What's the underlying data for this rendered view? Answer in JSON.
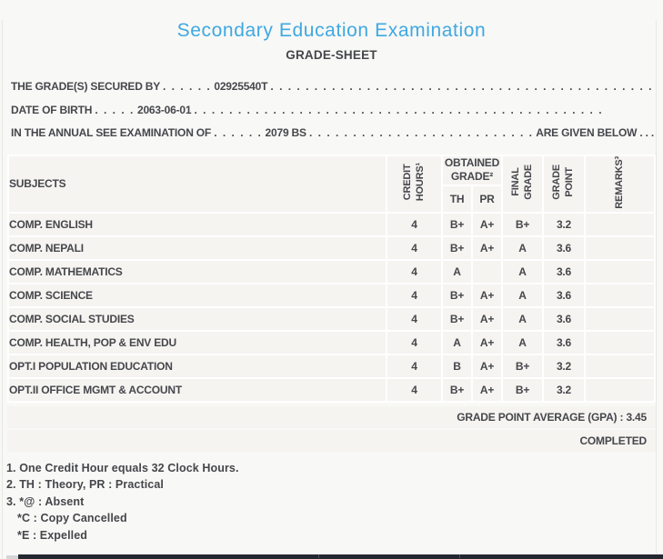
{
  "document": {
    "title": "Secondary Education Examination",
    "subtitle": "GRADE-SHEET"
  },
  "info": {
    "lines": [
      {
        "label": "THE GRADE(S) SECURED BY",
        "dots1": ". . . . . .",
        "value": "02925540T",
        "dots2": ". . . . . . . . . . . . . . . . . . . . . . . . . . . . . . . . . . . . . . . . . . . . . .",
        "suffix": ""
      },
      {
        "label": "DATE OF BIRTH",
        "dots1": ". . . . .",
        "value": "2063-06-01",
        "dots2": ". . . . . . . . . . . . . . . . . . . . . . . . . . . . . . . . . . . . . . . . . . . . . . .",
        "suffix": ""
      },
      {
        "label": "IN THE ANNUAL SEE EXAMINATION OF",
        "dots1": ". . . . . .",
        "value": "2079 BS",
        "dots2": ". . . . . . . . . . . . . . . . . . . . . . . . . .",
        "suffix": "ARE GIVEN BELOW . . ."
      }
    ]
  },
  "table": {
    "headers": {
      "subjects": "SUBJECTS",
      "credit_hours": {
        "l1": "CREDIT",
        "l2": "HOURS¹"
      },
      "obtained_grade": {
        "l1": "OBTAINED",
        "l2": "GRADE²"
      },
      "th": "TH",
      "pr": "PR",
      "final_grade": {
        "l1": "FINAL",
        "l2": "GRADE"
      },
      "grade_point": {
        "l1": "GRADE",
        "l2": "POINT"
      },
      "remarks": {
        "l1": "REMARKS³",
        "l2": ""
      }
    },
    "rows": [
      {
        "subject": "COMP. ENGLISH",
        "credit": "4",
        "th": "B+",
        "pr": "A+",
        "final": "B+",
        "gp": "3.2",
        "remarks": ""
      },
      {
        "subject": "COMP. NEPALI",
        "credit": "4",
        "th": "B+",
        "pr": "A+",
        "final": "A",
        "gp": "3.6",
        "remarks": ""
      },
      {
        "subject": "COMP. MATHEMATICS",
        "credit": "4",
        "th": "A",
        "pr": "",
        "final": "A",
        "gp": "3.6",
        "remarks": ""
      },
      {
        "subject": "COMP. SCIENCE",
        "credit": "4",
        "th": "B+",
        "pr": "A+",
        "final": "A",
        "gp": "3.6",
        "remarks": ""
      },
      {
        "subject": "COMP. SOCIAL STUDIES",
        "credit": "4",
        "th": "B+",
        "pr": "A+",
        "final": "A",
        "gp": "3.6",
        "remarks": ""
      },
      {
        "subject": "COMP. HEALTH, POP & ENV EDU",
        "credit": "4",
        "th": "A",
        "pr": "A+",
        "final": "A",
        "gp": "3.6",
        "remarks": ""
      },
      {
        "subject": "OPT.I POPULATION EDUCATION",
        "credit": "4",
        "th": "B",
        "pr": "A+",
        "final": "B+",
        "gp": "3.2",
        "remarks": ""
      },
      {
        "subject": "OPT.II OFFICE MGMT & ACCOUNT",
        "credit": "4",
        "th": "B+",
        "pr": "A+",
        "final": "B+",
        "gp": "3.2",
        "remarks": ""
      }
    ]
  },
  "summary": {
    "gpa_label": "GRADE POINT AVERAGE (GPA) :",
    "gpa_value": "3.45",
    "status": "COMPLETED"
  },
  "footnotes": {
    "lines": [
      "1. One Credit Hour equals 32 Clock Hours.",
      "2. TH : Theory, PR : Practical",
      "3. *@ : Absent",
      "*C : Copy Cancelled",
      "*E : Expelled"
    ]
  },
  "colors": {
    "title_blue": "#3fa8e2",
    "text": "#46474c",
    "cell_bg": "#f5f4f1",
    "page_bg": "#f8f8f6",
    "bottom_bar": "#23272f"
  }
}
